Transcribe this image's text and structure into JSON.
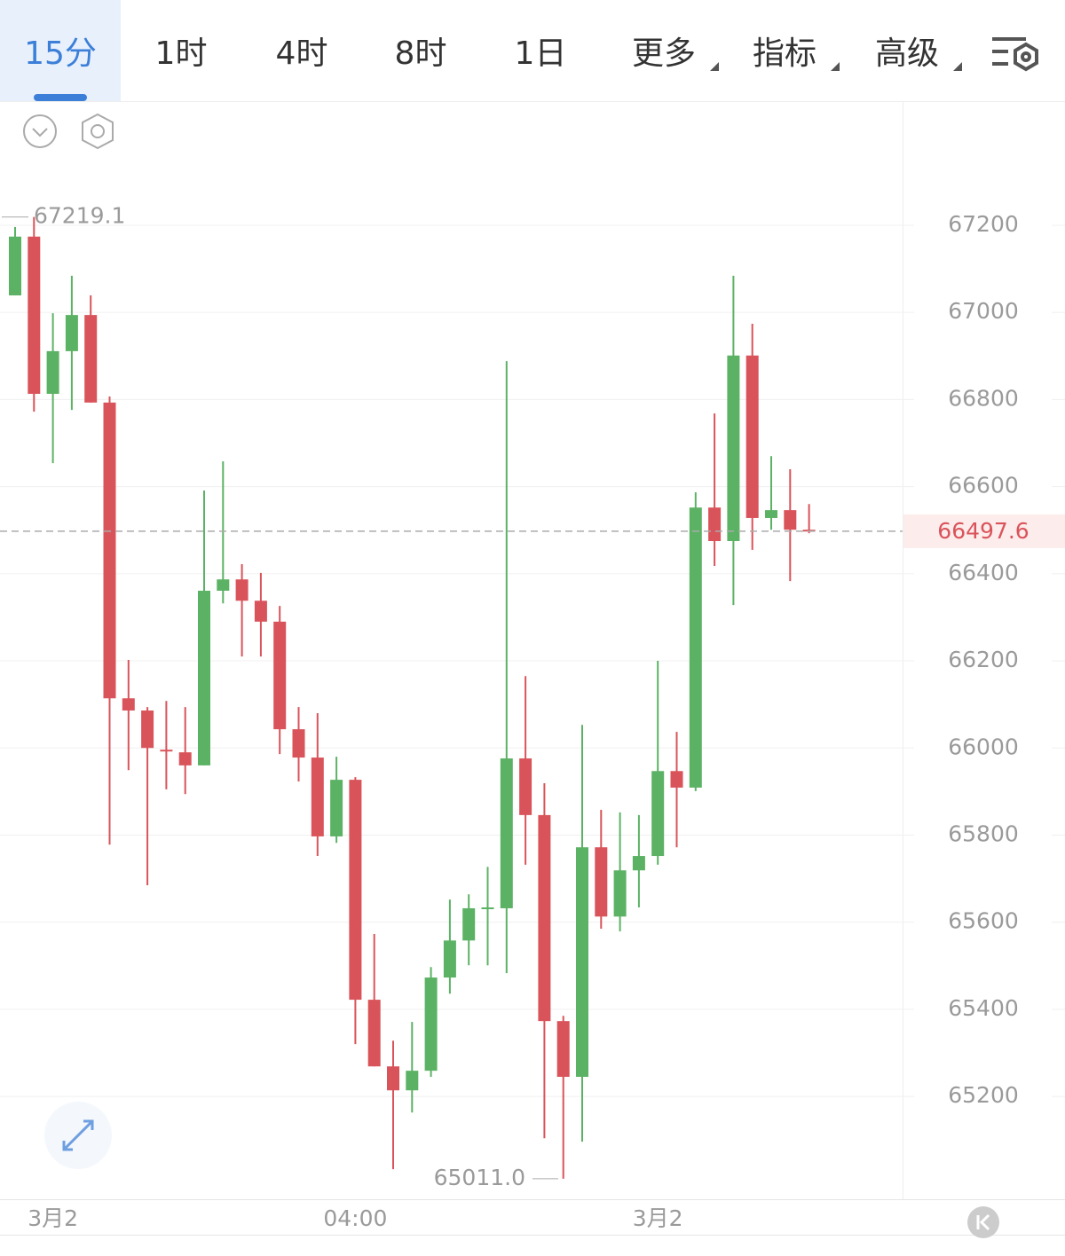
{
  "tabs": [
    "15分",
    "1时",
    "4时",
    "8时",
    "1日",
    "更多",
    "指标",
    "高级"
  ],
  "chart_data": {
    "type": "candlestick",
    "categories": [
      null,
      null,
      "3月2",
      null,
      null,
      null,
      null,
      null,
      null,
      null,
      null,
      null,
      null,
      null,
      null,
      null,
      null,
      null,
      "04:00",
      null,
      null,
      null,
      null,
      null,
      null,
      null,
      null,
      null,
      null,
      null,
      null,
      null,
      null,
      null,
      "3月2",
      null,
      null,
      null,
      null,
      null,
      null,
      null,
      null
    ],
    "open": [
      67039,
      67174,
      66813,
      66911,
      66994,
      66793,
      66114,
      66086,
      65996,
      65990,
      65960,
      66361,
      66387,
      66338,
      66290,
      66043,
      65978,
      65797,
      65927,
      65422,
      65269,
      65214,
      65259,
      65473,
      65558,
      65630,
      65632,
      65976,
      65846,
      65373,
      65245,
      65772,
      65613,
      65719,
      65752,
      65947,
      65909,
      66552,
      66475,
      66901,
      66528,
      66546,
      66501
    ],
    "high": [
      67196,
      67219.1,
      66998,
      67084,
      67039,
      66807,
      66202,
      66094,
      66108,
      66094,
      66591,
      66658,
      66422,
      66402,
      66326,
      66094,
      66080,
      65980,
      65933,
      65573,
      65328,
      65371,
      65497,
      65652,
      65664,
      65727,
      66888,
      66165,
      65919,
      65385,
      66053,
      65858,
      65852,
      65846,
      66200,
      66037,
      66587,
      66768,
      67084,
      66974,
      66670,
      66640,
      66560
    ],
    "low": [
      67039,
      66772,
      66654,
      66776,
      66793,
      65778,
      65949,
      65685,
      65905,
      65894,
      65960,
      66332,
      66210,
      66210,
      65986,
      65923,
      65752,
      65782,
      65320,
      65269,
      65033,
      65163,
      65245,
      65436,
      65501,
      65501,
      65483,
      65732,
      65104,
      65011,
      65096,
      65585,
      65579,
      65634,
      65732,
      65772,
      65901,
      66418,
      66328,
      66455,
      66501,
      66383,
      66493
    ],
    "close": [
      67174,
      66813,
      66911,
      66994,
      66793,
      66114,
      66086,
      66000,
      65992,
      65960,
      66361,
      66387,
      66338,
      66290,
      66043,
      65978,
      65797,
      65927,
      65422,
      65269,
      65214,
      65259,
      65473,
      65558,
      65632,
      65634,
      65976,
      65846,
      65373,
      65245,
      65772,
      65613,
      65719,
      65752,
      65947,
      65909,
      66552,
      66475,
      66901,
      66528,
      66546,
      66501,
      66497.6
    ],
    "up_color": "#5cb264",
    "down_color": "#d9545a",
    "ylim": [
      64964,
      67483
    ],
    "yticks": [
      65200,
      65400,
      65600,
      65800,
      66000,
      66200,
      66400,
      66600,
      66800,
      67000,
      67200
    ],
    "grid": true,
    "last_price": 66497.6,
    "max_label": 67219.1,
    "min_label": {
      "value": 65011,
      "label": "65011.0"
    }
  }
}
